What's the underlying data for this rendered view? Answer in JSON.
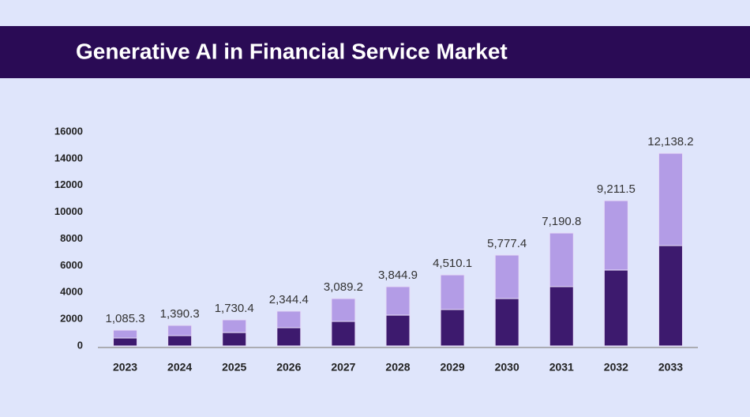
{
  "chart_data": {
    "type": "stacked_bar",
    "title": "Generative AI in Financial Service Market",
    "categories": [
      "2023",
      "2024",
      "2025",
      "2026",
      "2027",
      "2028",
      "2029",
      "2030",
      "2031",
      "2032",
      "2033"
    ],
    "series": [
      {
        "color": "#3d1a6e",
        "values": [
          590,
          770,
          1000,
          1360,
          1830,
          2300,
          2720,
          3540,
          4430,
          5670,
          7500
        ]
      },
      {
        "color": "#b39ce6",
        "values": [
          590,
          765,
          950,
          1240,
          1710,
          2130,
          2590,
          3250,
          4010,
          5190,
          6900
        ]
      }
    ],
    "annotations": [
      "1,085.3",
      "1,390.3",
      "1,730.4",
      "2,344.4",
      "3,089.2",
      "3,844.9",
      "4,510.1",
      "5,777.4",
      "7,190.8",
      "9,211.5",
      "12,138.2"
    ],
    "ylim": [
      0,
      16000
    ],
    "yticks": [
      0,
      2000,
      4000,
      6000,
      8000,
      10000,
      12000,
      14000,
      16000
    ],
    "grid": false
  }
}
